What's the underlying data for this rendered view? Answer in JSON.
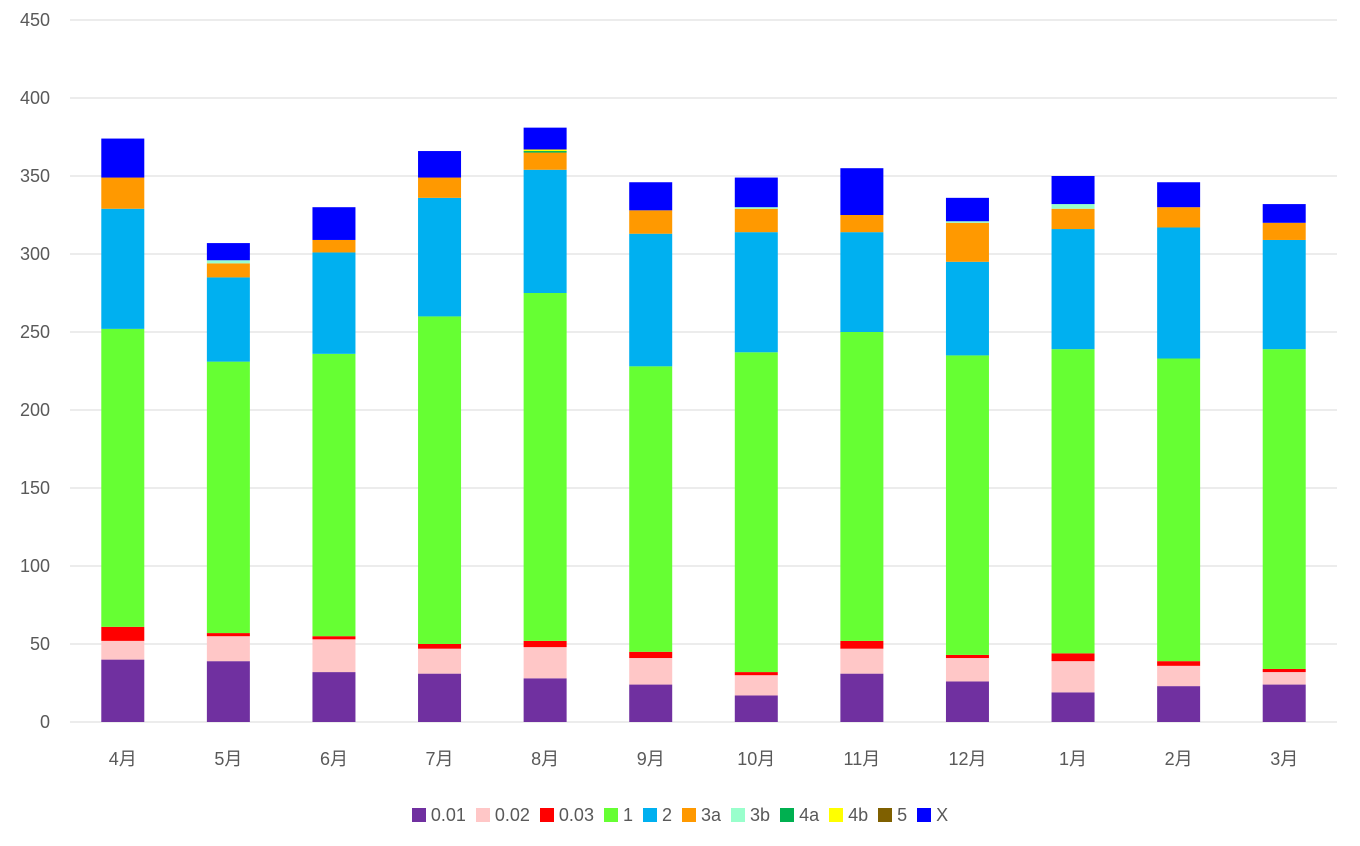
{
  "chart_data": {
    "type": "bar",
    "stacked": true,
    "title": "",
    "xlabel": "",
    "ylabel": "",
    "ylim": [
      0,
      450
    ],
    "yticks": [
      0,
      50,
      100,
      150,
      200,
      250,
      300,
      350,
      400,
      450
    ],
    "grid": true,
    "legend_position": "bottom",
    "categories": [
      "4月",
      "5月",
      "6月",
      "7月",
      "8月",
      "9月",
      "10月",
      "11月",
      "12月",
      "1月",
      "2月",
      "3月"
    ],
    "series": [
      {
        "name": "0.01",
        "color": "#7030a0",
        "values": [
          40,
          39,
          32,
          31,
          28,
          24,
          17,
          31,
          26,
          19,
          23,
          24
        ]
      },
      {
        "name": "0.02",
        "color": "#ffc7c7",
        "values": [
          12,
          16,
          21,
          16,
          20,
          17,
          13,
          16,
          15,
          20,
          13,
          8
        ]
      },
      {
        "name": "0.03",
        "color": "#ff0000",
        "values": [
          9,
          2,
          2,
          3,
          4,
          4,
          2,
          5,
          2,
          5,
          3,
          2
        ]
      },
      {
        "name": "1",
        "color": "#66ff33",
        "values": [
          191,
          174,
          181,
          210,
          223,
          183,
          205,
          198,
          192,
          195,
          194,
          205
        ]
      },
      {
        "name": "2",
        "color": "#00b0f0",
        "values": [
          77,
          54,
          65,
          76,
          79,
          85,
          77,
          64,
          60,
          77,
          84,
          70
        ]
      },
      {
        "name": "3a",
        "color": "#ff9900",
        "values": [
          20,
          9,
          8,
          13,
          11,
          15,
          15,
          11,
          25,
          13,
          13,
          11
        ]
      },
      {
        "name": "3b",
        "color": "#99ffcc",
        "values": [
          0,
          2,
          0,
          0,
          0,
          0,
          1,
          0,
          1,
          3,
          0,
          0
        ]
      },
      {
        "name": "4a",
        "color": "#00b050",
        "values": [
          0,
          0,
          0,
          0,
          1,
          0,
          0,
          0,
          0,
          0,
          0,
          0
        ]
      },
      {
        "name": "4b",
        "color": "#ffff00",
        "values": [
          0,
          0,
          0,
          0,
          1,
          0,
          0,
          0,
          0,
          0,
          0,
          0
        ]
      },
      {
        "name": "5",
        "color": "#7f6000",
        "values": [
          0,
          0,
          0,
          0,
          0,
          0,
          0,
          0,
          0,
          0,
          0,
          0
        ]
      },
      {
        "name": "X",
        "color": "#0000ff",
        "values": [
          25,
          11,
          21,
          17,
          14,
          18,
          19,
          30,
          15,
          18,
          16,
          12
        ]
      }
    ]
  }
}
